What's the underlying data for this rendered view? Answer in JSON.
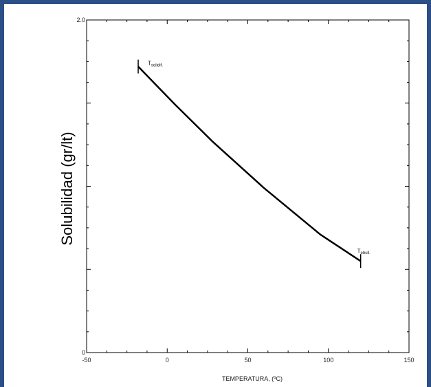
{
  "colors": {
    "border": "#2b4f86",
    "background": "#ffffff",
    "line": "#000000"
  },
  "chart_data": {
    "type": "line",
    "title": "",
    "xlabel": "TEMPERATURA, (ºC)",
    "ylabel": "Solubilidad (gr/lt)",
    "xlim": [
      -50,
      150
    ],
    "ylim": [
      0,
      2.0
    ],
    "x_ticks": [
      -50,
      0,
      50,
      100,
      150
    ],
    "y_tick_labels": [
      {
        "value": 0,
        "label": "0"
      },
      {
        "value": 2.0,
        "label": "2.0"
      }
    ],
    "y_minor_ticks": [
      0.5,
      1.0,
      1.5
    ],
    "series": [
      {
        "x": [
          -18,
          5,
          28,
          60,
          95,
          120
        ],
        "y": [
          1.72,
          1.49,
          1.27,
          0.99,
          0.71,
          0.55
        ]
      }
    ],
    "annotations": [
      {
        "base": "T",
        "sub": "solidif.",
        "x": -18,
        "y": 1.72
      },
      {
        "base": "T",
        "sub": "ebull.",
        "x": 120,
        "y": 0.55
      }
    ],
    "grid": false
  }
}
